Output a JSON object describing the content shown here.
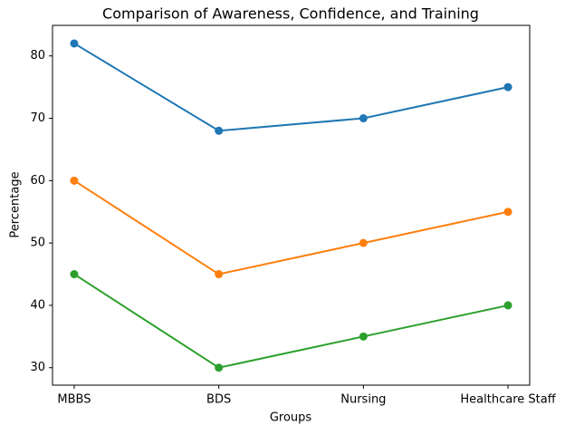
{
  "chart_data": {
    "type": "line",
    "title": "Comparison of Awareness, Confidence, and Training",
    "x_label": "Groups",
    "y_label": "Percentage",
    "categories": [
      "MBBS",
      "BDS",
      "Nursing",
      "Healthcare Staff"
    ],
    "series": [
      {
        "color": "#1f77b4",
        "values": [
          82,
          68,
          70,
          75
        ]
      },
      {
        "color": "#ff7f0e",
        "values": [
          60,
          45,
          50,
          55
        ]
      },
      {
        "color": "#2ca02c",
        "values": [
          45,
          30,
          35,
          40
        ]
      }
    ],
    "ylim": [
      27.2,
      84.9
    ],
    "yticks": [
      30,
      40,
      50,
      60,
      70,
      80
    ],
    "grid": false
  }
}
